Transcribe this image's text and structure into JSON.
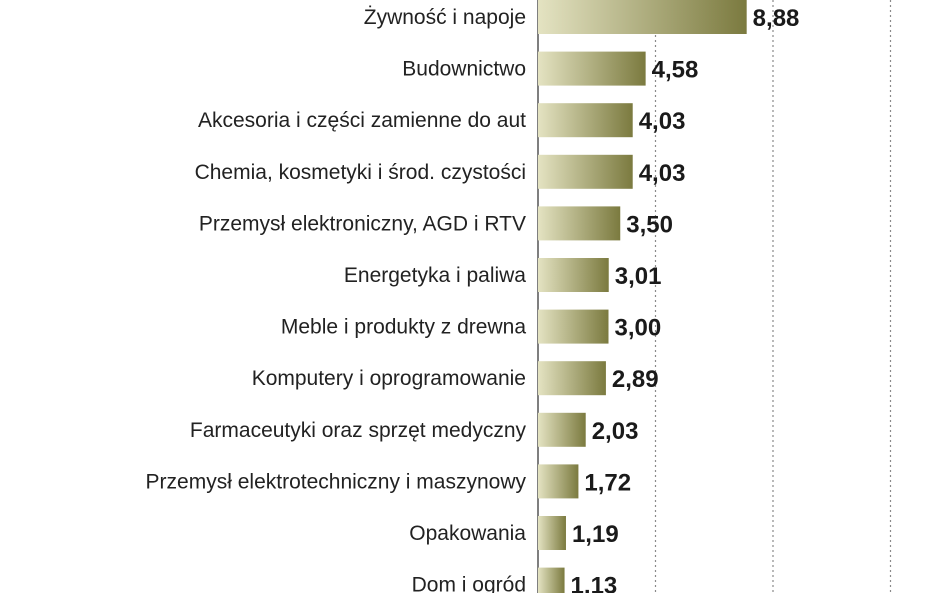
{
  "colors": {
    "bar_light": "#e4e3c2",
    "bar_dark": "#7b7a3f",
    "grid": "#8a8a8a",
    "axis": "#555555"
  },
  "chart_data": {
    "type": "bar",
    "orientation": "horizontal",
    "title": "",
    "xlabel": "",
    "ylabel": "",
    "grid": true,
    "xlim": [
      0,
      30
    ],
    "categories": [
      "Żywność i napoje",
      "Budownictwo",
      "Akcesoria i części zamienne do aut",
      "Chemia, kosmetyki i środ. czystości",
      "Przemysł elektroniczny, AGD i RTV",
      "Energetyka i paliwa",
      "Meble i produkty z drewna",
      "Komputery i oprogramowanie",
      "Farmaceutyki oraz sprzęt medyczny",
      "Przemysł elektrotechniczny i maszynowy",
      "Opakowania",
      "Dom i ogród"
    ],
    "values": [
      8.88,
      4.58,
      4.03,
      4.03,
      3.5,
      3.01,
      3.0,
      2.89,
      2.03,
      1.72,
      1.19,
      1.13
    ],
    "value_labels": [
      "8,88",
      "4,58",
      "4,03",
      "4,03",
      "3,50",
      "3,01",
      "3,00",
      "2,89",
      "2,03",
      "1,72",
      "1,19",
      "1,13"
    ]
  }
}
